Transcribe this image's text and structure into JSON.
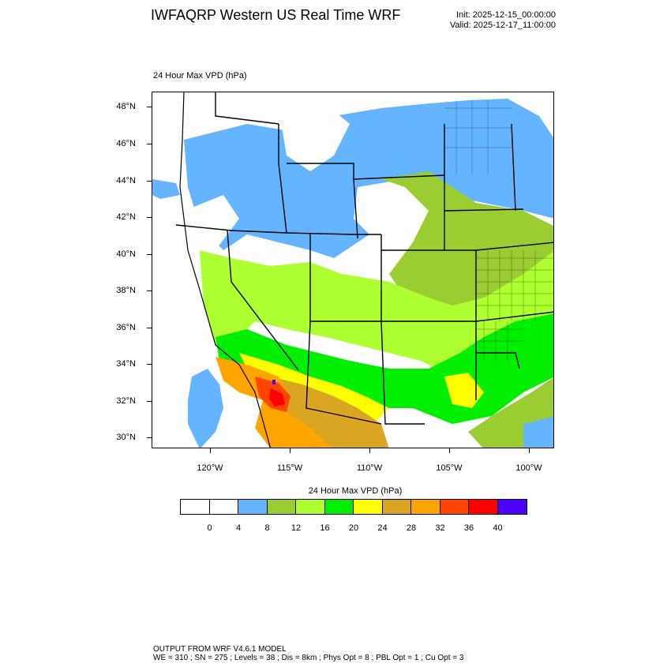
{
  "title": "IWFAQRP Western US Real Time WRF",
  "init": "Init: 2025-12-15_00:00:00",
  "valid": "Valid: 2025-12-17_11:00:00",
  "field_label": "24 Hour Max VPD   (hPa)",
  "colorbar_title": "24 Hour Max VPD  (hPa)",
  "lat_labels": [
    "48°N",
    "46°N",
    "44°N",
    "42°N",
    "40°N",
    "38°N",
    "36°N",
    "34°N",
    "32°N",
    "30°N"
  ],
  "lon_labels": [
    "120°W",
    "115°W",
    "110°W",
    "105°W",
    "100°W"
  ],
  "colorbar": {
    "labels": [
      "0",
      "4",
      "8",
      "12",
      "16",
      "20",
      "24",
      "28",
      "32",
      "36",
      "40"
    ],
    "colors": [
      "#ffffff",
      "#ffffff",
      "#64b4ff",
      "#9acd32",
      "#adff2f",
      "#00ee00",
      "#ffff00",
      "#daa520",
      "#ffa500",
      "#ff4500",
      "#ff0000",
      "#4b00ff"
    ]
  },
  "footer": {
    "line1": "OUTPUT FROM WRF V4.6.1 MODEL",
    "line2": "WE = 310 ; SN = 275 ; Levels = 38 ; Dis = 8km ; Phys Opt = 8 ; PBL Opt = 1 ; Cu Opt = 3"
  }
}
